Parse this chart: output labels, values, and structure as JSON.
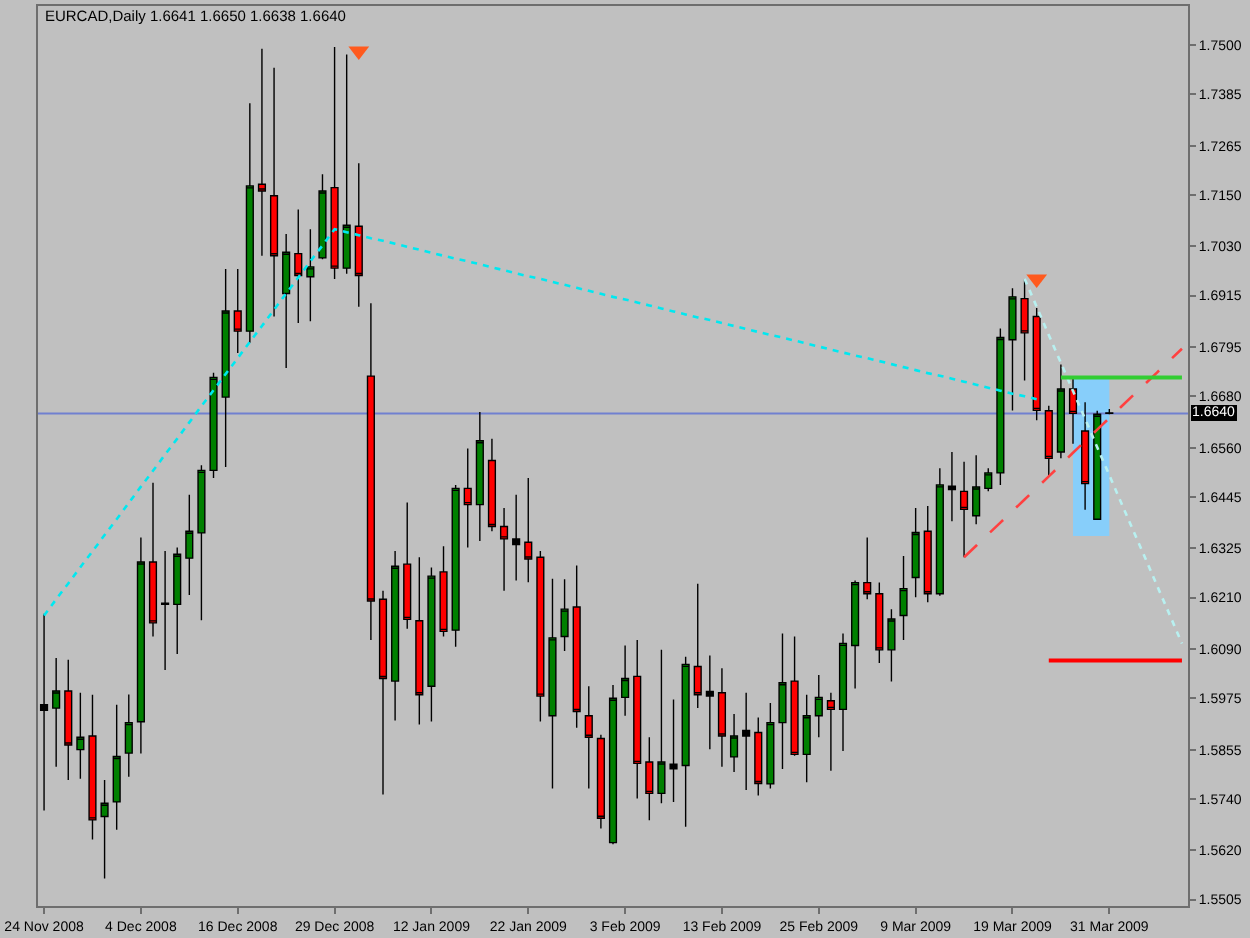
{
  "chart_data": {
    "type": "candlestick",
    "title": "EURCAD,Daily 1.6641 1.6650 1.6638 1.6640",
    "categories": [
      "24 Nov 2008",
      null,
      null,
      null,
      null,
      null,
      null,
      null,
      "4 Dec 2008",
      null,
      null,
      null,
      null,
      null,
      null,
      null,
      "16 Dec 2008",
      null,
      null,
      null,
      null,
      null,
      null,
      null,
      "29 Dec 2008",
      null,
      null,
      null,
      null,
      null,
      null,
      null,
      "12 Jan 2009",
      null,
      null,
      null,
      null,
      null,
      null,
      null,
      "22 Jan 2009",
      null,
      null,
      null,
      null,
      null,
      null,
      null,
      "3 Feb 2009",
      null,
      null,
      null,
      null,
      null,
      null,
      null,
      "13 Feb 2009",
      null,
      null,
      null,
      null,
      null,
      null,
      null,
      "25 Feb 2009",
      null,
      null,
      null,
      null,
      null,
      null,
      null,
      "9 Mar 2009",
      null,
      null,
      null,
      null,
      null,
      null,
      null,
      "19 Mar 2009",
      null,
      null,
      null,
      null,
      null,
      null,
      null,
      "31 Mar 2009",
      null,
      null,
      null,
      null,
      null,
      null
    ],
    "ohlc": [
      [
        1.596,
        1.6172,
        1.5713,
        1.5947
      ],
      [
        1.5952,
        1.6069,
        1.5815,
        1.5992
      ],
      [
        1.5992,
        1.6065,
        1.5784,
        1.5866
      ],
      [
        1.5855,
        1.5988,
        1.5787,
        1.5884
      ],
      [
        1.5887,
        1.5983,
        1.5645,
        1.5691
      ],
      [
        1.5699,
        1.5784,
        1.5554,
        1.573
      ],
      [
        1.5733,
        1.596,
        1.5668,
        1.5839
      ],
      [
        1.5847,
        1.5984,
        1.5792,
        1.5918
      ],
      [
        1.592,
        1.635,
        1.5846,
        1.6293
      ],
      [
        1.6293,
        1.6478,
        1.6119,
        1.6151
      ],
      [
        1.6194,
        1.6319,
        1.6041,
        1.6197
      ],
      [
        1.6194,
        1.6327,
        1.6078,
        1.6311
      ],
      [
        1.6302,
        1.645,
        1.6216,
        1.6365
      ],
      [
        1.6361,
        1.6519,
        1.6157,
        1.6507
      ],
      [
        1.6507,
        1.6735,
        1.6489,
        1.6724
      ],
      [
        1.6678,
        1.6977,
        1.6515,
        1.6879
      ],
      [
        1.6879,
        1.6977,
        1.6781,
        1.6832
      ],
      [
        1.6832,
        1.7364,
        1.6805,
        1.7171
      ],
      [
        1.7175,
        1.7491,
        1.7008,
        1.7159
      ],
      [
        1.7148,
        1.7447,
        1.6866,
        1.7008
      ],
      [
        1.692,
        1.7059,
        1.6746,
        1.7016
      ],
      [
        1.7013,
        1.7116,
        1.6851,
        1.6962
      ],
      [
        1.6959,
        1.707,
        1.6855,
        1.6982
      ],
      [
        1.7003,
        1.7198,
        1.7,
        1.7159
      ],
      [
        1.7167,
        1.7495,
        1.6954,
        1.6979
      ],
      [
        1.6979,
        1.7478,
        1.6966,
        1.7079
      ],
      [
        1.7077,
        1.7224,
        1.6889,
        1.6962
      ],
      [
        1.6727,
        1.6897,
        1.6111,
        1.6202
      ],
      [
        1.6206,
        1.6226,
        1.575,
        1.6021
      ],
      [
        1.6015,
        1.6319,
        1.5923,
        1.6283
      ],
      [
        1.6288,
        1.6432,
        1.6137,
        1.6159
      ],
      [
        1.6156,
        1.6304,
        1.5914,
        1.5983
      ],
      [
        1.6003,
        1.628,
        1.5921,
        1.626
      ],
      [
        1.627,
        1.633,
        1.6119,
        1.6131
      ],
      [
        1.6134,
        1.6473,
        1.6095,
        1.6465
      ],
      [
        1.6465,
        1.6558,
        1.6327,
        1.6427
      ],
      [
        1.6427,
        1.6643,
        1.6342,
        1.6576
      ],
      [
        1.653,
        1.6581,
        1.6365,
        1.6376
      ],
      [
        1.6376,
        1.6419,
        1.6226,
        1.6347
      ],
      [
        1.6347,
        1.645,
        1.625,
        1.6334
      ],
      [
        1.6339,
        1.6489,
        1.6246,
        1.63
      ],
      [
        1.6304,
        1.6319,
        1.5921,
        1.598
      ],
      [
        1.5934,
        1.6254,
        1.5764,
        1.6116
      ],
      [
        1.6119,
        1.6253,
        1.6085,
        1.6183
      ],
      [
        1.6188,
        1.6285,
        1.5906,
        1.5944
      ],
      [
        1.5934,
        1.6003,
        1.5764,
        1.5884
      ],
      [
        1.5881,
        1.589,
        1.5671,
        1.5695
      ],
      [
        1.5638,
        1.6006,
        1.5634,
        1.5975
      ],
      [
        1.5977,
        1.6098,
        1.5934,
        1.6021
      ],
      [
        1.6026,
        1.6111,
        1.5741,
        1.5823
      ],
      [
        1.5826,
        1.5884,
        1.569,
        1.5753
      ],
      [
        1.5753,
        1.6088,
        1.573,
        1.5826
      ],
      [
        1.581,
        1.5972,
        1.5733,
        1.5821
      ],
      [
        1.5818,
        1.6072,
        1.5675,
        1.6054
      ],
      [
        1.6049,
        1.6242,
        1.5952,
        1.5983
      ],
      [
        1.598,
        1.6075,
        1.5856,
        1.5991
      ],
      [
        1.5988,
        1.6045,
        1.5815,
        1.5887
      ],
      [
        1.5838,
        1.5938,
        1.5803,
        1.5887
      ],
      [
        1.5887,
        1.5988,
        1.5761,
        1.59
      ],
      [
        1.5895,
        1.593,
        1.5748,
        1.5776
      ],
      [
        1.5775,
        1.5964,
        1.5764,
        1.5918
      ],
      [
        1.5918,
        1.6126,
        1.581,
        1.6011
      ],
      [
        1.6015,
        1.6119,
        1.5841,
        1.5844
      ],
      [
        1.5844,
        1.5983,
        1.5779,
        1.5934
      ],
      [
        1.5934,
        1.6029,
        1.5884,
        1.5977
      ],
      [
        1.5969,
        1.5988,
        1.5806,
        1.5949
      ],
      [
        1.5949,
        1.6126,
        1.5852,
        1.6103
      ],
      [
        1.6098,
        1.625,
        1.5998,
        1.6245
      ],
      [
        1.6245,
        1.635,
        1.6206,
        1.6219
      ],
      [
        1.6219,
        1.6245,
        1.6057,
        1.6088
      ],
      [
        1.6088,
        1.6183,
        1.6014,
        1.616
      ],
      [
        1.6168,
        1.6307,
        1.6111,
        1.6231
      ],
      [
        1.6257,
        1.6419,
        1.6211,
        1.6362
      ],
      [
        1.6365,
        1.6424,
        1.6199,
        1.6219
      ],
      [
        1.6219,
        1.6512,
        1.6214,
        1.6473
      ],
      [
        1.647,
        1.655,
        1.6388,
        1.6462
      ],
      [
        1.6458,
        1.6527,
        1.6304,
        1.6416
      ],
      [
        1.6401,
        1.6542,
        1.6381,
        1.6468
      ],
      [
        1.6465,
        1.6512,
        1.6458,
        1.6501
      ],
      [
        1.6501,
        1.6838,
        1.6473,
        1.6817
      ],
      [
        1.6812,
        1.6932,
        1.6647,
        1.6912
      ],
      [
        1.6908,
        1.6954,
        1.6717,
        1.6828
      ],
      [
        1.6866,
        1.6886,
        1.6624,
        1.6647
      ],
      [
        1.6646,
        1.6658,
        1.6492,
        1.6535
      ],
      [
        1.655,
        1.6754,
        1.6535,
        1.6697
      ],
      [
        1.6697,
        1.672,
        1.6569,
        1.664
      ],
      [
        1.6599,
        1.6666,
        1.6415,
        1.6476
      ],
      [
        1.6393,
        1.6646,
        1.6393,
        1.6638
      ],
      [
        1.6641,
        1.665,
        1.6638,
        1.664
      ],
      null,
      null,
      null,
      null,
      null,
      null
    ],
    "colors": [
      "#000000",
      "#008000",
      "#ff0000",
      "#008000",
      "#ff0000",
      "#008000",
      "#008000",
      "#008000",
      "#008000",
      "#ff0000",
      "#000000",
      "#008000",
      "#008000",
      "#008000",
      "#008000",
      "#008000",
      "#ff0000",
      "#008000",
      "#ff0000",
      "#ff0000",
      "#008000",
      "#ff0000",
      "#008000",
      "#008000",
      "#ff0000",
      "#008000",
      "#ff0000",
      "#ff0000",
      "#ff0000",
      "#008000",
      "#ff0000",
      "#ff0000",
      "#008000",
      "#ff0000",
      "#008000",
      "#ff0000",
      "#008000",
      "#ff0000",
      "#ff0000",
      "#000000",
      "#ff0000",
      "#ff0000",
      "#008000",
      "#008000",
      "#ff0000",
      "#ff0000",
      "#ff0000",
      "#008000",
      "#008000",
      "#ff0000",
      "#ff0000",
      "#008000",
      "#000000",
      "#008000",
      "#ff0000",
      "#000000",
      "#ff0000",
      "#008000",
      "#000000",
      "#ff0000",
      "#008000",
      "#008000",
      "#ff0000",
      "#008000",
      "#008000",
      "#ff0000",
      "#008000",
      "#008000",
      "#ff0000",
      "#ff0000",
      "#008000",
      "#008000",
      "#008000",
      "#ff0000",
      "#008000",
      "#000000",
      "#ff0000",
      "#008000",
      "#008000",
      "#008000",
      "#008000",
      "#ff0000",
      "#ff0000",
      "#ff0000",
      "#008000",
      "#ff0000",
      "#ff0000",
      "#008000",
      "#000000",
      null,
      null,
      null,
      null,
      null,
      null
    ],
    "series": [
      {
        "type": "line",
        "color": "#87cefa",
        "values": [
          null,
          null,
          null,
          null,
          null,
          null,
          null,
          null,
          null,
          null,
          null,
          null,
          null,
          null,
          null,
          null,
          null,
          null,
          null,
          null,
          null,
          null,
          null,
          null,
          null,
          null,
          null,
          null,
          null,
          null,
          null,
          null,
          null,
          null,
          null,
          null,
          null,
          null,
          null,
          null,
          null,
          null,
          null,
          null,
          null,
          null,
          null,
          null,
          null,
          null,
          null,
          null,
          null,
          null,
          null,
          null,
          null,
          null,
          null,
          null,
          null,
          null,
          null,
          null,
          null,
          null,
          null,
          null,
          null,
          null,
          null,
          null,
          null,
          null,
          null,
          null,
          null,
          null,
          null,
          null,
          null,
          null,
          null,
          null,
          null,
          null,
          null,
          null,
          null,
          null,
          null,
          null,
          null,
          null,
          null
        ],
        "upper": [
          null,
          null,
          null,
          null,
          null,
          null,
          null,
          null,
          null,
          null,
          null,
          null,
          null,
          null,
          null,
          null,
          null,
          null,
          null,
          null,
          null,
          null,
          null,
          null,
          null,
          null,
          null,
          null,
          null,
          null,
          null,
          null,
          null,
          null,
          null,
          null,
          null,
          null,
          null,
          null,
          null,
          null,
          null,
          null,
          null,
          null,
          null,
          null,
          null,
          null,
          null,
          null,
          null,
          null,
          null,
          null,
          null,
          null,
          null,
          null,
          null,
          null,
          null,
          null,
          null,
          null,
          null,
          null,
          null,
          null,
          null,
          null,
          null,
          null,
          null,
          null,
          null,
          null,
          null,
          null,
          null,
          null,
          null,
          null,
          null,
          1.672,
          1.672,
          1.672,
          1.672,
          null,
          null,
          null,
          null,
          null,
          null
        ],
        "lower": [
          null,
          null,
          null,
          null,
          null,
          null,
          null,
          null,
          null,
          null,
          null,
          null,
          null,
          null,
          null,
          null,
          null,
          null,
          null,
          null,
          null,
          null,
          null,
          null,
          null,
          null,
          null,
          null,
          null,
          null,
          null,
          null,
          null,
          null,
          null,
          null,
          null,
          null,
          null,
          null,
          null,
          null,
          null,
          null,
          null,
          null,
          null,
          null,
          null,
          null,
          null,
          null,
          null,
          null,
          null,
          null,
          null,
          null,
          null,
          null,
          null,
          null,
          null,
          null,
          null,
          null,
          null,
          null,
          null,
          null,
          null,
          null,
          null,
          null,
          null,
          null,
          null,
          null,
          null,
          null,
          null,
          null,
          null,
          null,
          null,
          1.6354,
          1.6354,
          1.6354,
          1.6354,
          null,
          null,
          null,
          null,
          null,
          null
        ]
      },
      {
        "type": "line",
        "color": "#00e8f0",
        "line_style": "dotted",
        "values": [
          1.6168,
          1.6206,
          1.6243,
          1.6281,
          1.6318,
          1.6356,
          1.6393,
          1.6431,
          1.6469,
          1.6506,
          1.6544,
          1.6581,
          1.6619,
          1.6657,
          1.6694,
          1.6732,
          1.6769,
          1.6807,
          1.6844,
          1.6882,
          1.692,
          1.6957,
          1.6995,
          1.7032,
          1.707,
          1.7063,
          1.7056,
          1.7049,
          1.7043,
          1.7036,
          1.7029,
          1.7022,
          1.7015,
          1.7008,
          1.7001,
          1.6995,
          1.6988,
          1.6981,
          1.6974,
          1.6967,
          1.696,
          1.6954,
          1.6947,
          1.694,
          1.6933,
          1.6926,
          1.6919,
          1.6912,
          1.6906,
          1.6899,
          1.6892,
          1.6885,
          1.6878,
          1.6871,
          1.6864,
          1.6858,
          1.6851,
          1.6844,
          1.6837,
          1.683,
          1.6823,
          1.6817,
          1.681,
          1.6803,
          1.6796,
          1.6789,
          1.6782,
          1.6775,
          1.6769,
          1.6762,
          1.6755,
          1.6748,
          1.6741,
          1.6734,
          1.6728,
          1.6721,
          1.6714,
          1.6707,
          1.67,
          1.6693,
          1.6686,
          1.668,
          1.6673,
          null,
          null,
          null,
          null,
          null,
          null,
          null,
          null,
          null,
          null,
          null,
          null
        ]
      },
      {
        "type": "line",
        "color": "#b8f0f0",
        "line_style": "dotted",
        "values": [
          null,
          null,
          null,
          null,
          null,
          null,
          null,
          null,
          null,
          null,
          null,
          null,
          null,
          null,
          null,
          null,
          null,
          null,
          null,
          null,
          null,
          null,
          null,
          null,
          null,
          null,
          null,
          null,
          null,
          null,
          null,
          null,
          null,
          null,
          null,
          null,
          null,
          null,
          null,
          null,
          null,
          null,
          null,
          null,
          null,
          null,
          null,
          null,
          null,
          null,
          null,
          null,
          null,
          null,
          null,
          null,
          null,
          null,
          null,
          null,
          null,
          null,
          null,
          null,
          null,
          null,
          null,
          null,
          null,
          null,
          null,
          null,
          null,
          null,
          null,
          null,
          null,
          null,
          null,
          null,
          null,
          1.6954,
          1.6889,
          1.6823,
          1.6758,
          1.6692,
          1.6627,
          1.6561,
          1.6496,
          1.643,
          1.6365,
          1.63,
          1.6234,
          1.6169,
          1.6103
        ]
      },
      {
        "type": "line",
        "color": "#ff4040",
        "line_style": "dashed",
        "values": [
          null,
          null,
          null,
          null,
          null,
          null,
          null,
          null,
          null,
          null,
          null,
          null,
          null,
          null,
          null,
          null,
          null,
          null,
          null,
          null,
          null,
          null,
          null,
          null,
          null,
          null,
          null,
          null,
          null,
          null,
          null,
          null,
          null,
          null,
          null,
          null,
          null,
          null,
          null,
          null,
          null,
          null,
          null,
          null,
          null,
          null,
          null,
          null,
          null,
          null,
          null,
          null,
          null,
          null,
          null,
          null,
          null,
          null,
          null,
          null,
          null,
          null,
          null,
          null,
          null,
          null,
          null,
          null,
          null,
          null,
          null,
          null,
          null,
          null,
          null,
          null,
          1.6304,
          1.6331,
          1.6358,
          1.6385,
          1.6412,
          1.6439,
          1.6466,
          1.6493,
          1.652,
          1.6548,
          1.6575,
          1.6602,
          1.6629,
          1.6656,
          1.6683,
          1.671,
          1.6737,
          1.6764,
          1.6791
        ]
      },
      {
        "type": "line",
        "color": "#32cd32",
        "line_style": "solid",
        "values": [
          null,
          null,
          null,
          null,
          null,
          null,
          null,
          null,
          null,
          null,
          null,
          null,
          null,
          null,
          null,
          null,
          null,
          null,
          null,
          null,
          null,
          null,
          null,
          null,
          null,
          null,
          null,
          null,
          null,
          null,
          null,
          null,
          null,
          null,
          null,
          null,
          null,
          null,
          null,
          null,
          null,
          null,
          null,
          null,
          null,
          null,
          null,
          null,
          null,
          null,
          null,
          null,
          null,
          null,
          null,
          null,
          null,
          null,
          null,
          null,
          null,
          null,
          null,
          null,
          null,
          null,
          null,
          null,
          null,
          null,
          null,
          null,
          null,
          null,
          null,
          null,
          null,
          null,
          null,
          null,
          null,
          null,
          null,
          null,
          1.6724,
          1.6724,
          1.6724,
          1.6724,
          1.6724,
          1.6724,
          1.6724,
          1.6724,
          1.6724,
          1.6724,
          1.6724
        ]
      },
      {
        "type": "line",
        "color": "#ff0000",
        "line_style": "solid",
        "values": [
          null,
          null,
          null,
          null,
          null,
          null,
          null,
          null,
          null,
          null,
          null,
          null,
          null,
          null,
          null,
          null,
          null,
          null,
          null,
          null,
          null,
          null,
          null,
          null,
          null,
          null,
          null,
          null,
          null,
          null,
          null,
          null,
          null,
          null,
          null,
          null,
          null,
          null,
          null,
          null,
          null,
          null,
          null,
          null,
          null,
          null,
          null,
          null,
          null,
          null,
          null,
          null,
          null,
          null,
          null,
          null,
          null,
          null,
          null,
          null,
          null,
          null,
          null,
          null,
          null,
          null,
          null,
          null,
          null,
          null,
          null,
          null,
          null,
          null,
          null,
          null,
          null,
          null,
          null,
          null,
          null,
          null,
          null,
          1.6063,
          1.6063,
          1.6063,
          1.6063,
          1.6063,
          1.6063,
          1.6063,
          1.6063,
          1.6063,
          1.6063,
          1.6063,
          1.6063
        ]
      },
      {
        "type": "scatter",
        "color": "#ff5a1e",
        "marker": "triangle",
        "values": [
          null,
          null,
          null,
          null,
          null,
          null,
          null,
          null,
          null,
          null,
          null,
          null,
          null,
          null,
          null,
          null,
          null,
          null,
          null,
          null,
          null,
          null,
          null,
          null,
          null,
          null,
          1.7486,
          null,
          null,
          null,
          null,
          null,
          null,
          null,
          null,
          null,
          null,
          null,
          null,
          null,
          null,
          null,
          null,
          null,
          null,
          null,
          null,
          null,
          null,
          null,
          null,
          null,
          null,
          null,
          null,
          null,
          null,
          null,
          null,
          null,
          null,
          null,
          null,
          null,
          null,
          null,
          null,
          null,
          null,
          null,
          null,
          null,
          null,
          null,
          null,
          null,
          null,
          null,
          null,
          null,
          null,
          null,
          1.6954,
          null,
          null,
          null,
          null,
          null,
          null,
          null,
          null,
          null,
          null,
          null,
          null
        ]
      }
    ],
    "ref_lines": [
      {
        "axis": "y",
        "value": 1.664,
        "label": "1.6640",
        "color": "#7080d0"
      }
    ],
    "ylim": [
      1.549,
      1.7591
    ],
    "yticks": [
      {
        "value": 1.75,
        "label": "1.7500"
      },
      {
        "value": 1.7385,
        "label": "1.7385"
      },
      {
        "value": 1.7265,
        "label": "1.7265"
      },
      {
        "value": 1.715,
        "label": "1.7150"
      },
      {
        "value": 1.703,
        "label": "1.7030"
      },
      {
        "value": 1.6915,
        "label": "1.6915"
      },
      {
        "value": 1.6795,
        "label": "1.6795"
      },
      {
        "value": 1.668,
        "label": "1.6680"
      },
      {
        "value": 1.656,
        "label": "1.6560"
      },
      {
        "value": 1.6445,
        "label": "1.6445"
      },
      {
        "value": 1.6325,
        "label": "1.6325"
      },
      {
        "value": 1.621,
        "label": "1.6210"
      },
      {
        "value": 1.609,
        "label": "1.6090"
      },
      {
        "value": 1.5975,
        "label": "1.5975"
      },
      {
        "value": 1.5855,
        "label": "1.5855"
      },
      {
        "value": 1.574,
        "label": "1.5740"
      },
      {
        "value": 1.562,
        "label": "1.5620"
      },
      {
        "value": 1.5505,
        "label": "1.5505"
      }
    ]
  }
}
